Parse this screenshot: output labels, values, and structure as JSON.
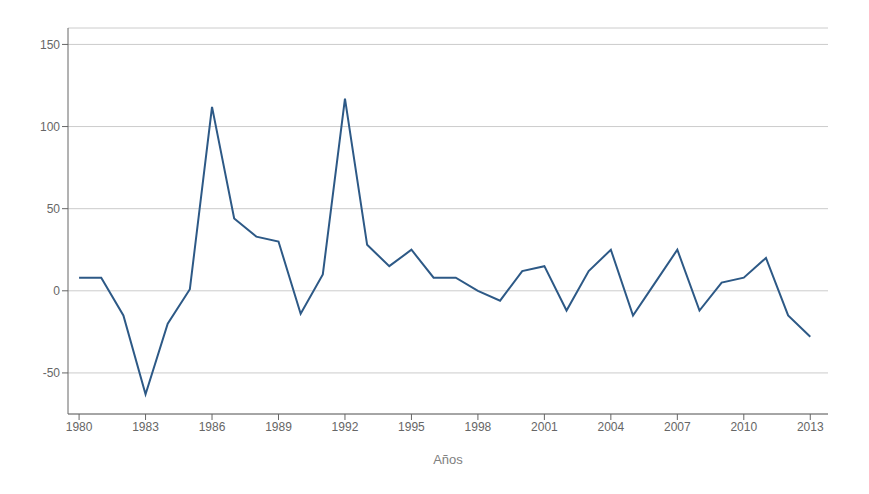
{
  "chart_data": {
    "type": "line",
    "xlabel": "Años",
    "x": [
      1980,
      1981,
      1982,
      1983,
      1984,
      1985,
      1986,
      1987,
      1988,
      1989,
      1990,
      1991,
      1992,
      1993,
      1994,
      1995,
      1996,
      1997,
      1998,
      1999,
      2000,
      2001,
      2002,
      2003,
      2004,
      2005,
      2006,
      2007,
      2008,
      2009,
      2010,
      2011,
      2012,
      2013
    ],
    "values": [
      8,
      8,
      -15,
      -63,
      -20,
      1,
      112,
      44,
      33,
      30,
      -14,
      10,
      117,
      28,
      15,
      25,
      8,
      8,
      0,
      -6,
      12,
      15,
      -12,
      12,
      25,
      -15,
      5,
      25,
      -12,
      5,
      8,
      20,
      -15,
      -28
    ],
    "color": "#2d5986",
    "xlim": [
      1979.5,
      2013.8
    ],
    "xticks": [
      1980,
      1983,
      1986,
      1989,
      1992,
      1995,
      1998,
      2001,
      2004,
      2007,
      2010,
      2013
    ],
    "ylim": [
      -75,
      160
    ],
    "yticks": [
      -50,
      0,
      50,
      100,
      150
    ],
    "grid": true
  }
}
